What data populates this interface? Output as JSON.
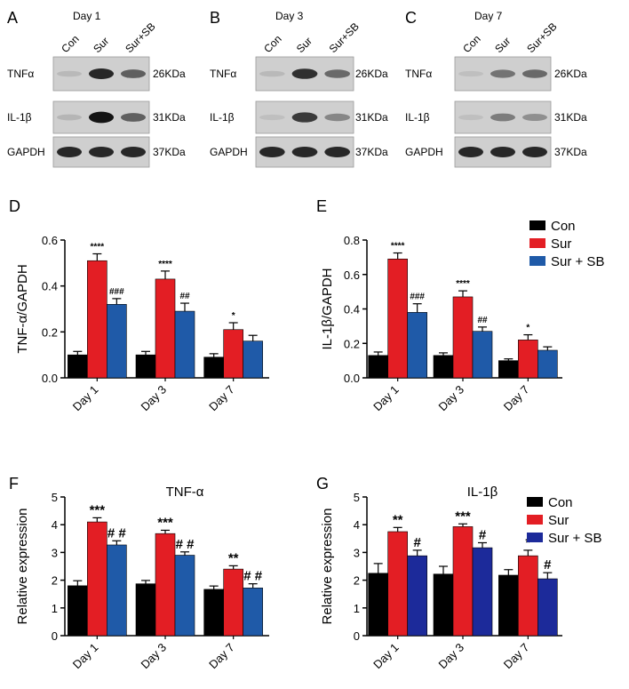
{
  "blots": [
    {
      "letter": "A",
      "day_label": "Day 1",
      "lanes": [
        "Con",
        "Sur",
        "Sur+SB"
      ],
      "bands": [
        {
          "protein": "TNFα",
          "size": "26KDa",
          "intensity": [
            0.08,
            0.85,
            0.55
          ]
        },
        {
          "protein": "IL-1β",
          "size": "31KDa",
          "intensity": [
            0.1,
            0.95,
            0.55
          ]
        },
        {
          "protein": "GAPDH",
          "size": "37KDa",
          "intensity": [
            0.85,
            0.85,
            0.85
          ]
        }
      ]
    },
    {
      "letter": "B",
      "day_label": "Day 3",
      "lanes": [
        "Con",
        "Sur",
        "Sur+SB"
      ],
      "bands": [
        {
          "protein": "TNFα",
          "size": "26KDa",
          "intensity": [
            0.08,
            0.8,
            0.5
          ]
        },
        {
          "protein": "IL-1β",
          "size": "31KDa",
          "intensity": [
            0.05,
            0.75,
            0.35
          ]
        },
        {
          "protein": "GAPDH",
          "size": "37KDa",
          "intensity": [
            0.85,
            0.85,
            0.85
          ]
        }
      ]
    },
    {
      "letter": "C",
      "day_label": "Day 7",
      "lanes": [
        "Con",
        "Sur",
        "Sur+SB"
      ],
      "bands": [
        {
          "protein": "TNFα",
          "size": "26KDa",
          "intensity": [
            0.05,
            0.45,
            0.5
          ]
        },
        {
          "protein": "IL-1β",
          "size": "31KDa",
          "intensity": [
            0.05,
            0.4,
            0.3
          ]
        },
        {
          "protein": "GAPDH",
          "size": "37KDa",
          "intensity": [
            0.85,
            0.85,
            0.85
          ]
        }
      ]
    }
  ],
  "colors": {
    "con": "#000000",
    "sur": "#e31e24",
    "sursb": "#1f5aa8",
    "sursb_dark": "#1c2a9a"
  },
  "chart_data": [
    {
      "letter": "D",
      "type": "bar",
      "title": "",
      "ylabel": "TNF-α/GAPDH",
      "categories": [
        "Day 1",
        "Day 3",
        "Day 7"
      ],
      "ylim": [
        0,
        0.6
      ],
      "yticks": [
        "0.0",
        "0.2",
        "0.4",
        "0.6"
      ],
      "ytick_values": [
        0,
        0.2,
        0.4,
        0.6
      ],
      "series": [
        {
          "name": "Con",
          "values": [
            0.1,
            0.1,
            0.09
          ],
          "errors": [
            0.015,
            0.015,
            0.015
          ]
        },
        {
          "name": "Sur",
          "values": [
            0.51,
            0.43,
            0.21
          ],
          "errors": [
            0.03,
            0.035,
            0.03
          ]
        },
        {
          "name": "Sur+SB",
          "values": [
            0.32,
            0.29,
            0.16
          ],
          "errors": [
            0.025,
            0.035,
            0.025
          ]
        }
      ],
      "annotations": [
        {
          "category": 0,
          "series": 1,
          "text": "****"
        },
        {
          "category": 0,
          "series": 2,
          "text": "###"
        },
        {
          "category": 1,
          "series": 1,
          "text": "****"
        },
        {
          "category": 1,
          "series": 2,
          "text": "##"
        },
        {
          "category": 2,
          "series": 1,
          "text": "*"
        }
      ],
      "legend": false
    },
    {
      "letter": "E",
      "type": "bar",
      "title": "",
      "ylabel": "IL-1β/GAPDH",
      "categories": [
        "Day 1",
        "Day 3",
        "Day 7"
      ],
      "ylim": [
        0,
        0.8
      ],
      "yticks": [
        "0.0",
        "0.2",
        "0.4",
        "0.6",
        "0.8"
      ],
      "ytick_values": [
        0,
        0.2,
        0.4,
        0.6,
        0.8
      ],
      "series": [
        {
          "name": "Con",
          "values": [
            0.13,
            0.13,
            0.1
          ],
          "errors": [
            0.02,
            0.015,
            0.01
          ]
        },
        {
          "name": "Sur",
          "values": [
            0.69,
            0.47,
            0.22
          ],
          "errors": [
            0.035,
            0.035,
            0.03
          ]
        },
        {
          "name": "Sur+SB",
          "values": [
            0.38,
            0.27,
            0.16
          ],
          "errors": [
            0.05,
            0.025,
            0.02
          ]
        }
      ],
      "annotations": [
        {
          "category": 0,
          "series": 1,
          "text": "****"
        },
        {
          "category": 0,
          "series": 2,
          "text": "###"
        },
        {
          "category": 1,
          "series": 1,
          "text": "****"
        },
        {
          "category": 1,
          "series": 2,
          "text": "##"
        },
        {
          "category": 2,
          "series": 1,
          "text": "*"
        }
      ],
      "legend": true,
      "legend_labels": [
        "Con",
        "Sur",
        "Sur + SB"
      ],
      "legend_position": "right"
    },
    {
      "letter": "F",
      "type": "bar",
      "title": "TNF-α",
      "ylabel": "Relative expression",
      "categories": [
        "Day 1",
        "Day 3",
        "Day 7"
      ],
      "ylim": [
        0,
        5
      ],
      "yticks": [
        "0",
        "1",
        "2",
        "3",
        "4",
        "5"
      ],
      "ytick_values": [
        0,
        1,
        2,
        3,
        4,
        5
      ],
      "series": [
        {
          "name": "Con",
          "values": [
            1.8,
            1.87,
            1.67
          ],
          "errors": [
            0.18,
            0.12,
            0.12
          ]
        },
        {
          "name": "Sur",
          "values": [
            4.1,
            3.68,
            2.4
          ],
          "errors": [
            0.15,
            0.12,
            0.12
          ]
        },
        {
          "name": "Sur+SB",
          "values": [
            3.27,
            2.9,
            1.72
          ],
          "errors": [
            0.15,
            0.12,
            0.15
          ]
        }
      ],
      "annotations": [
        {
          "category": 0,
          "series": 1,
          "text": "***"
        },
        {
          "category": 0,
          "series": 2,
          "text": "# #"
        },
        {
          "category": 1,
          "series": 1,
          "text": "***"
        },
        {
          "category": 1,
          "series": 2,
          "text": "# #"
        },
        {
          "category": 2,
          "series": 1,
          "text": "**"
        },
        {
          "category": 2,
          "series": 2,
          "text": "# #"
        }
      ],
      "legend": false
    },
    {
      "letter": "G",
      "type": "bar",
      "title": "IL-1β",
      "ylabel": "Relative expression",
      "categories": [
        "Day 1",
        "Day 3",
        "Day 7"
      ],
      "ylim": [
        0,
        5
      ],
      "yticks": [
        "0",
        "1",
        "2",
        "3",
        "4",
        "5"
      ],
      "ytick_values": [
        0,
        1,
        2,
        3,
        4,
        5
      ],
      "series": [
        {
          "name": "Con",
          "values": [
            2.25,
            2.22,
            2.18
          ],
          "errors": [
            0.35,
            0.28,
            0.2
          ]
        },
        {
          "name": "Sur",
          "values": [
            3.75,
            3.93,
            2.88
          ],
          "errors": [
            0.15,
            0.1,
            0.2
          ]
        },
        {
          "name": "Sur+SB",
          "values": [
            2.88,
            3.17,
            2.05
          ],
          "errors": [
            0.2,
            0.18,
            0.22
          ]
        }
      ],
      "annotations": [
        {
          "category": 0,
          "series": 1,
          "text": "**"
        },
        {
          "category": 0,
          "series": 2,
          "text": "#"
        },
        {
          "category": 1,
          "series": 1,
          "text": "***"
        },
        {
          "category": 1,
          "series": 2,
          "text": "#"
        },
        {
          "category": 2,
          "series": 1,
          "text": "*"
        },
        {
          "category": 2,
          "series": 2,
          "text": "#"
        }
      ],
      "legend": true,
      "legend_labels": [
        "Con",
        "Sur",
        "Sur + SB"
      ],
      "legend_position": "right"
    }
  ]
}
